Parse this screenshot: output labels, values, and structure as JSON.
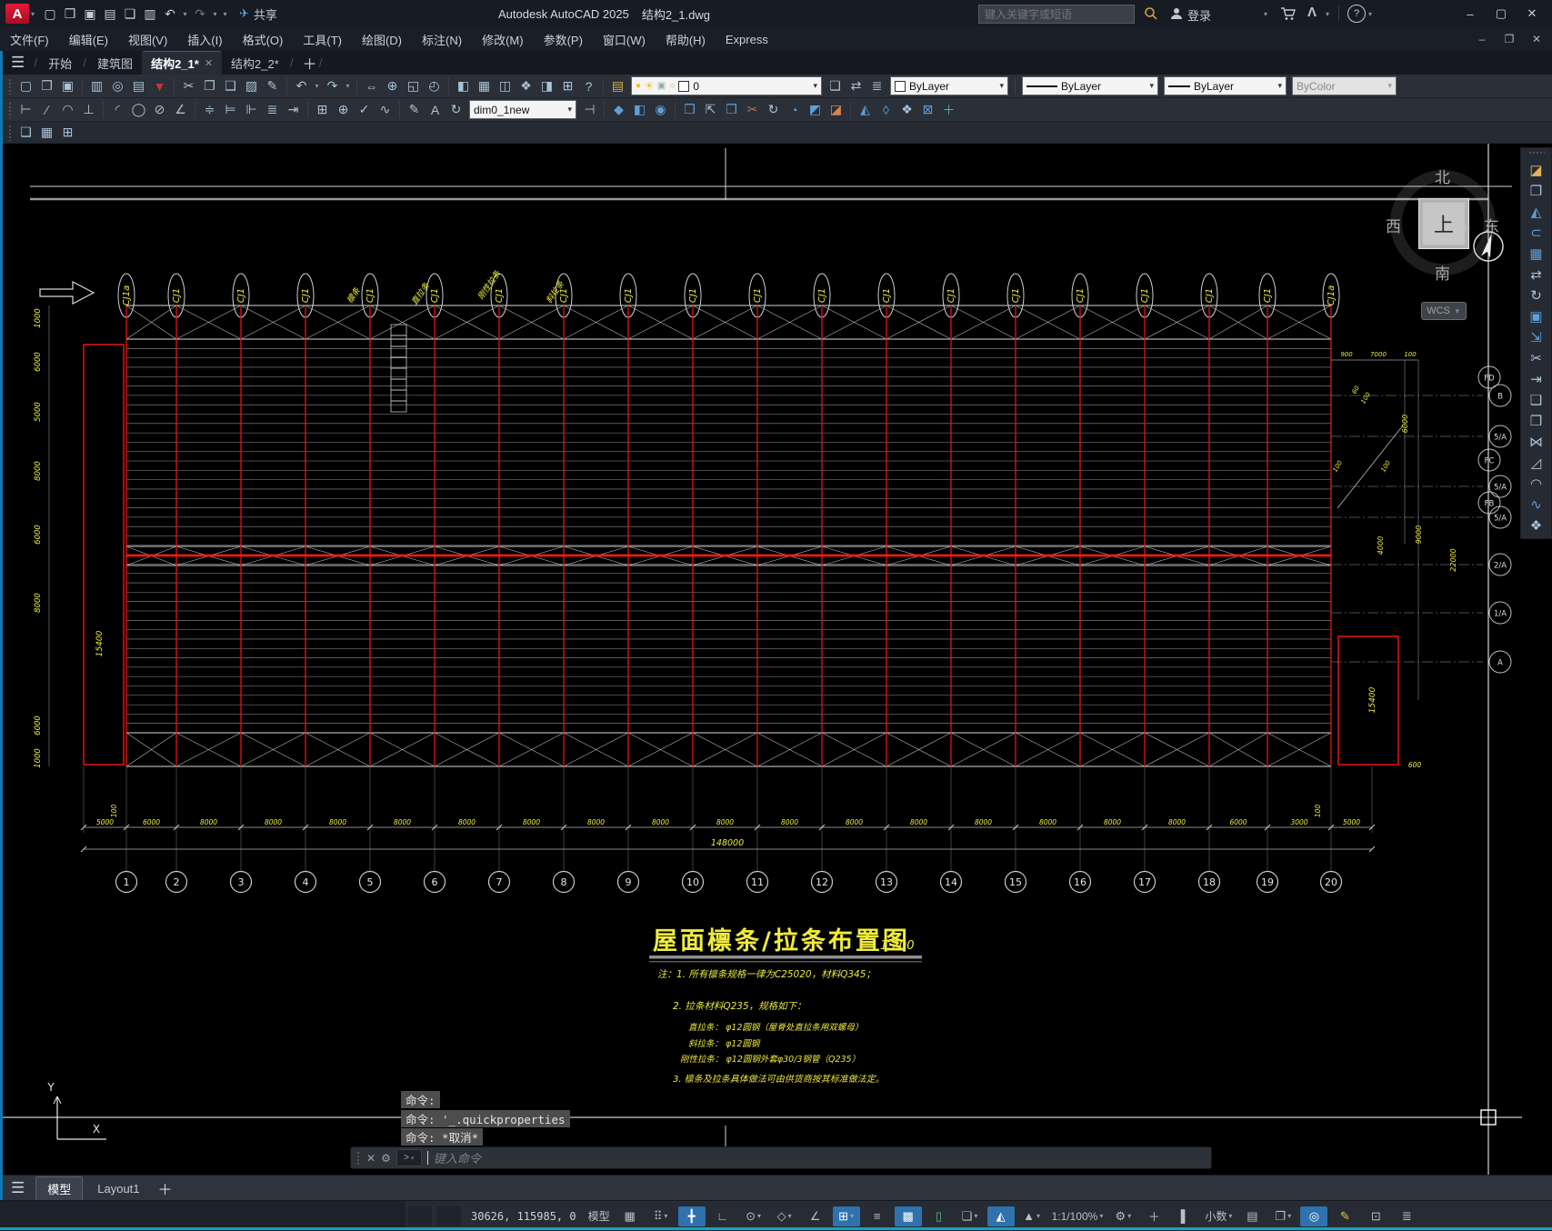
{
  "titlebar": {
    "app_name": "Autodesk AutoCAD 2025",
    "doc_name": "结构2_1.dwg",
    "share": "共享",
    "search_placeholder": "键入关键字或短语",
    "signin": "登录"
  },
  "menubar": {
    "items": [
      "文件(F)",
      "编辑(E)",
      "视图(V)",
      "插入(I)",
      "格式(O)",
      "工具(T)",
      "绘图(D)",
      "标注(N)",
      "修改(M)",
      "参数(P)",
      "窗口(W)",
      "帮助(H)",
      "Express"
    ]
  },
  "tabs": {
    "home": "开始",
    "t1": "建筑图",
    "t2": "结构2_1*",
    "t3": "结构2_2*"
  },
  "combos": {
    "layer": "0",
    "color": "ByLayer",
    "linetype": "ByLayer",
    "lineweight": "ByLayer",
    "plotstyle": "ByColor",
    "dimstyle": "dim0_1new"
  },
  "icons": {
    "qat": [
      {
        "g": "▢",
        "t": "qnew"
      },
      {
        "g": "❒",
        "t": "open"
      },
      {
        "g": "▣",
        "t": "save"
      },
      {
        "g": "▤",
        "t": "save-as"
      },
      {
        "g": "❑",
        "t": "plot"
      },
      {
        "g": "▥",
        "t": "batch-plot"
      },
      {
        "g": "↶",
        "t": "undo"
      },
      {
        "g": "▾",
        "t": "undo-history",
        "cr": 1
      },
      {
        "g": "↷",
        "t": "redo",
        "c": "#6b7380"
      },
      {
        "g": "▾",
        "t": "redo-history",
        "cr": 1
      },
      {
        "g": "▾",
        "t": "qat-customize",
        "cr": 1
      }
    ],
    "toolbar1": [
      {
        "g": "▢",
        "t": "qnew"
      },
      {
        "g": "❒",
        "t": "open"
      },
      {
        "g": "▣",
        "t": "save"
      },
      {
        "sep": 1
      },
      {
        "g": "▥",
        "t": "print"
      },
      {
        "g": "◎",
        "t": "print-preview"
      },
      {
        "g": "▤",
        "t": "publish"
      },
      {
        "g": "▼",
        "t": "dwf-export",
        "c": "#c0392b"
      },
      {
        "sep": 1
      },
      {
        "g": "✂",
        "t": "cut"
      },
      {
        "g": "❐",
        "t": "copy-clip"
      },
      {
        "g": "❑",
        "t": "paste"
      },
      {
        "g": "▨",
        "t": "match-properties"
      },
      {
        "g": "✎",
        "t": "edit-block"
      },
      {
        "sep": 1
      },
      {
        "g": "↶",
        "t": "undo"
      },
      {
        "g": "▾",
        "t": "undo-list",
        "cr": 1
      },
      {
        "g": "↷",
        "t": "redo"
      },
      {
        "g": "▾",
        "t": "redo-list",
        "cr": 1
      },
      {
        "sep": 1
      },
      {
        "g": "⇔",
        "t": "pan"
      },
      {
        "g": "⊕",
        "t": "zoom-realtime"
      },
      {
        "g": "◱",
        "t": "zoom-window"
      },
      {
        "g": "◴",
        "t": "zoom-previous"
      },
      {
        "sep": 1
      },
      {
        "g": "◧",
        "t": "properties-palette"
      },
      {
        "g": "▦",
        "t": "design-center"
      },
      {
        "g": "◫",
        "t": "tool-palettes"
      },
      {
        "g": "❖",
        "t": "sheet-set-manager"
      },
      {
        "g": "◨",
        "t": "markup-import"
      },
      {
        "g": "⊞",
        "t": "quick-calc"
      },
      {
        "g": "?",
        "t": "help"
      },
      {
        "sep": 1
      },
      {
        "g": "▤",
        "t": "layer-properties",
        "c": "#d9b23c"
      }
    ],
    "toolbar1b": [
      {
        "g": "❏",
        "t": "layer-states"
      },
      {
        "g": "⇄",
        "t": "layer-previous"
      },
      {
        "g": "≣",
        "t": "layer-translate"
      }
    ],
    "toolbar2": [
      {
        "g": "⊢",
        "t": "linear-dimension"
      },
      {
        "g": "∕",
        "t": "aligned-dimension"
      },
      {
        "g": "◠",
        "t": "arc-length-dimension"
      },
      {
        "g": "⊥",
        "t": "ordinate-dimension"
      },
      {
        "sep": 1
      },
      {
        "g": "◜",
        "t": "radius-dimension"
      },
      {
        "g": "◯",
        "t": "diameter-dimension"
      },
      {
        "g": "⊘",
        "t": "jogged-dimension"
      },
      {
        "g": "∠",
        "t": "angular-dimension"
      },
      {
        "sep": 1
      },
      {
        "g": "≑",
        "t": "quick-dimension"
      },
      {
        "g": "⊨",
        "t": "baseline-dimension"
      },
      {
        "g": "⊩",
        "t": "continue-dimension"
      },
      {
        "g": "≣",
        "t": "stacked-dimension"
      },
      {
        "g": "⇥",
        "t": "quick-leader"
      },
      {
        "sep": 1
      },
      {
        "g": "⊞",
        "t": "tolerance"
      },
      {
        "g": "⊕",
        "t": "center-mark"
      },
      {
        "g": "✓",
        "t": "dimension-inspect"
      },
      {
        "g": "∿",
        "t": "dimension-jog-line"
      },
      {
        "sep": 1
      },
      {
        "g": "✎",
        "t": "dimension-edit"
      },
      {
        "g": "A",
        "t": "dimension-text-edit"
      },
      {
        "g": "↻",
        "t": "dimension-update"
      }
    ],
    "toolbar2b": [
      {
        "g": "⊣",
        "t": "dimension-style"
      },
      {
        "sep": 1
      },
      {
        "g": "◆",
        "t": "union",
        "c": "#5f9fd8"
      },
      {
        "g": "◧",
        "t": "subtract",
        "c": "#5f9fd8"
      },
      {
        "g": "◉",
        "t": "intersect",
        "c": "#5f9fd8"
      },
      {
        "sep": 1
      },
      {
        "g": "❒",
        "t": "extrude-faces",
        "c": "#5f9fd8"
      },
      {
        "g": "⇱",
        "t": "move-faces"
      },
      {
        "g": "❐",
        "t": "offset-faces",
        "c": "#5f9fd8"
      },
      {
        "g": "✂",
        "t": "delete-faces",
        "c": "#c66"
      },
      {
        "g": "↻",
        "t": "rotate-faces"
      },
      {
        "g": "◔",
        "t": "taper-faces",
        "c": "#5f9fd8"
      },
      {
        "g": "◩",
        "t": "copy-faces",
        "c": "#5f9fd8"
      },
      {
        "g": "◪",
        "t": "color-faces",
        "c": "#d9834c"
      },
      {
        "sep": 1
      },
      {
        "g": "◭",
        "t": "imprint",
        "c": "#5f9fd8"
      },
      {
        "g": "◊",
        "t": "clean",
        "c": "#5f9fd8"
      },
      {
        "g": "❖",
        "t": "separate"
      },
      {
        "g": "⊠",
        "t": "shell",
        "c": "#5f9fd8"
      },
      {
        "g": "＋",
        "t": "check",
        "c": "#58b87a"
      }
    ],
    "toolbar3": [
      {
        "g": "❏",
        "t": "render-presets"
      },
      {
        "g": "▦",
        "t": "materials"
      },
      {
        "g": "⊞",
        "t": "lights"
      }
    ],
    "modify": [
      {
        "g": "◪",
        "t": "erase",
        "c": "#e0b45a"
      },
      {
        "g": "❐",
        "t": "copy"
      },
      {
        "g": "◭",
        "t": "mirror",
        "c": "#5f9fd8"
      },
      {
        "g": "⊂",
        "t": "offset",
        "c": "#5f9fd8"
      },
      {
        "g": "▦",
        "t": "array",
        "c": "#5f9fd8"
      },
      {
        "g": "⇄",
        "t": "move"
      },
      {
        "g": "↻",
        "t": "rotate"
      },
      {
        "g": "▣",
        "t": "scale",
        "c": "#5f9fd8"
      },
      {
        "g": "⇲",
        "t": "stretch",
        "c": "#5f9fd8"
      },
      {
        "g": "✂",
        "t": "trim"
      },
      {
        "g": "⇥",
        "t": "extend"
      },
      {
        "g": "❑",
        "t": "break-at-point"
      },
      {
        "g": "❒",
        "t": "break"
      },
      {
        "g": "⋈",
        "t": "join"
      },
      {
        "g": "◿",
        "t": "chamfer"
      },
      {
        "g": "◠",
        "t": "fillet"
      },
      {
        "g": "∿",
        "t": "blend-curves",
        "c": "#5f9fd8"
      },
      {
        "g": "❖",
        "t": "explode"
      }
    ],
    "status": [
      {
        "g": "▦",
        "t": "grid-display"
      },
      {
        "g": "⠿",
        "t": "snap-mode",
        "cr": 1
      },
      {
        "g": "╋",
        "t": "dynamic-input",
        "on": 1
      },
      {
        "g": "∟",
        "t": "ortho-mode"
      },
      {
        "g": "⊙",
        "t": "polar-tracking",
        "cr": 1
      },
      {
        "g": "◇",
        "t": "isometric-drafting",
        "cr": 1
      },
      {
        "g": "∠",
        "t": "object-snap-tracking"
      },
      {
        "g": "⊞",
        "t": "object-snap",
        "on": 1,
        "cr": 1
      },
      {
        "g": "≡",
        "t": "lineweight-display"
      },
      {
        "g": "▩",
        "t": "transparency",
        "on": 1
      },
      {
        "g": "▯",
        "t": "selection-cycling",
        "c": "#58b87a"
      },
      {
        "g": "❏",
        "t": "gizmo",
        "cr": 1
      },
      {
        "g": "◭",
        "t": "annotation-visibility",
        "on": 1
      },
      {
        "g": "▲",
        "t": "annotation-autoscale",
        "cr": 1
      },
      {
        "txt": "1:1/100%",
        "t": "annotation-scale",
        "cr": 1
      },
      {
        "g": "⚙",
        "t": "workspace-switching",
        "cr": 1
      },
      {
        "g": "＋",
        "t": "ui-customization"
      },
      {
        "g": "▌",
        "t": "units-ruler"
      },
      {
        "txt": "小数",
        "t": "drawing-units",
        "cr": 1,
        "wide": 1
      },
      {
        "g": "▤",
        "t": "quick-properties"
      },
      {
        "g": "❐",
        "t": "isolate-objects",
        "cr": 1
      },
      {
        "g": "◎",
        "t": "hardware-acceleration",
        "on": 1
      },
      {
        "g": "✎",
        "t": "graphics-performance",
        "c": "#e8c43c"
      },
      {
        "g": "⊡",
        "t": "clean-screen"
      },
      {
        "g": "≣",
        "t": "customize-statusbar"
      }
    ]
  },
  "drawing": {
    "title": "屋面檩条/拉条布置图",
    "title_scale": "1:200",
    "notes": [
      "注：1. 所有檩条规格一律为C25020，材料Q345；",
      "2. 拉条材料Q235，规格如下：",
      "直拉条： φ12圆钢（屋脊处直拉条用双螺母）",
      "斜拉条： φ12圆钢",
      "刚性拉条： φ12圆钢外套φ30/3钢管（Q235）",
      "3. 檩条及拉条具体做法可由供货商按其标准做法定。"
    ],
    "cj_labels": [
      "CJ1a",
      "CJ1",
      "CJ1",
      "CJ1",
      "CJ1",
      "CJ1",
      "CJ1",
      "CJ1",
      "CJ1",
      "CJ1",
      "CJ1",
      "CJ1",
      "CJ1",
      "CJ1",
      "CJ1",
      "CJ1",
      "CJ1",
      "CJ1",
      "CJ1",
      "CJ1a"
    ],
    "callouts": [
      "檩条",
      "直拉条",
      "刚性拉条",
      "斜拉条"
    ],
    "grid_bubbles": [
      "1",
      "2",
      "3",
      "4",
      "5",
      "6",
      "7",
      "8",
      "9",
      "10",
      "11",
      "12",
      "13",
      "14",
      "15",
      "16",
      "17",
      "18",
      "19",
      "20"
    ],
    "right_bubbles": [
      "FD",
      "B",
      "5/A",
      "FC",
      "5/A",
      "FB",
      "5/A",
      "2/A",
      "1/A",
      "A"
    ],
    "bottom_dims": [
      "5000",
      "6000",
      "8000",
      "8000",
      "8000",
      "8000",
      "8000",
      "8000",
      "8000",
      "8000",
      "8000",
      "8000",
      "8000",
      "8000",
      "8000",
      "8000",
      "8000",
      "8000",
      "6000",
      "3000",
      "5000"
    ],
    "total_dim": "148000",
    "left_dims": [
      "1000",
      "6000",
      "5000",
      "8000",
      "6000",
      "8000",
      "6000",
      "1000"
    ],
    "wall_dims": [
      "15400",
      "15400"
    ],
    "edge_dims": [
      "100",
      "100"
    ],
    "right_dims": [
      "900",
      "7000",
      "100",
      "60",
      "100",
      "6000",
      "100",
      "100",
      "4000",
      "9000",
      "22000",
      "600"
    ],
    "viewcube": {
      "north": "北",
      "south": "南",
      "west": "西",
      "east": "东",
      "top": "上",
      "n": "N",
      "wcs": "WCS"
    },
    "ucs": {
      "x": "X",
      "y": "Y"
    }
  },
  "command": {
    "history": [
      "命令:",
      "命令: '_.quickproperties",
      "命令: *取消*"
    ],
    "placeholder": "键入命令"
  },
  "layoutbar": {
    "model": "模型",
    "layout1": "Layout1"
  },
  "statusbar": {
    "coords": "30626, 115985, 0"
  }
}
